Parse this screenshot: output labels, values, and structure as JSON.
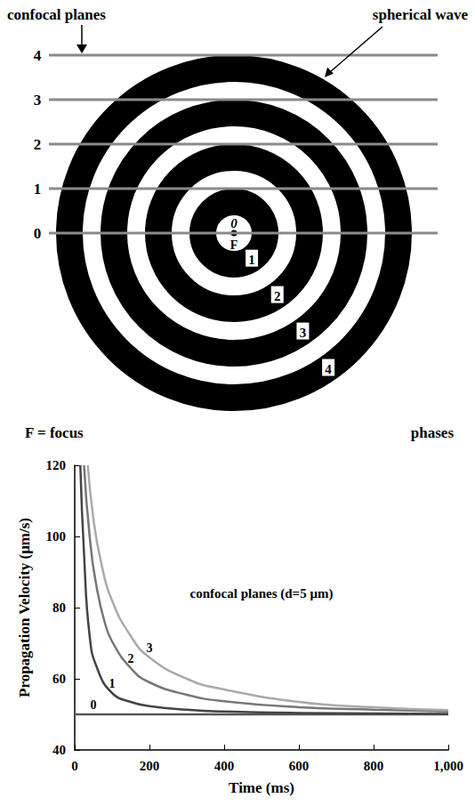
{
  "diagram": {
    "planes_label": "confocal planes",
    "wave_label": "spherical wave",
    "focus_symbol": "F",
    "focus_legend": "F = focus",
    "phases_label": "phases",
    "planes": [
      0,
      1,
      2,
      3,
      4
    ],
    "phases": [
      0,
      1,
      2,
      3,
      4
    ]
  },
  "chart_data": {
    "type": "line",
    "annotation": "confocal planes (d=5 μm)",
    "xlabel": "Time (ms)",
    "ylabel": "Propagation Velocity (μm/s)",
    "xlim": [
      0,
      1000
    ],
    "xticks": [
      0,
      200,
      400,
      600,
      800,
      1000
    ],
    "ylim": [
      40,
      120
    ],
    "yticks": [
      40,
      60,
      80,
      100,
      120
    ],
    "grid": false,
    "series": [
      {
        "name": "0",
        "color": "#555555",
        "x": [
          0,
          50,
          200,
          1000
        ],
        "values": [
          50,
          50,
          50,
          50
        ]
      },
      {
        "name": "1",
        "color": "#444444",
        "x": [
          15,
          25,
          40,
          60,
          100,
          150,
          200,
          300,
          400,
          600,
          1000
        ],
        "values": [
          120,
          95,
          72,
          63,
          56,
          53.5,
          52.3,
          51.3,
          50.8,
          50.4,
          50.1
        ]
      },
      {
        "name": "2",
        "color": "#777777",
        "x": [
          25,
          40,
          60,
          80,
          100,
          150,
          200,
          300,
          400,
          600,
          800,
          1000
        ],
        "values": [
          120,
          100,
          85,
          76,
          70.5,
          63,
          59,
          55.5,
          53.7,
          52,
          51.3,
          50.8
        ]
      },
      {
        "name": "3",
        "color": "#aaaaaa",
        "x": [
          35,
          50,
          70,
          100,
          150,
          200,
          300,
          400,
          600,
          800,
          1000
        ],
        "values": [
          120,
          105,
          93,
          82,
          72,
          66,
          60,
          57,
          53.5,
          52,
          51.2
        ]
      }
    ]
  }
}
